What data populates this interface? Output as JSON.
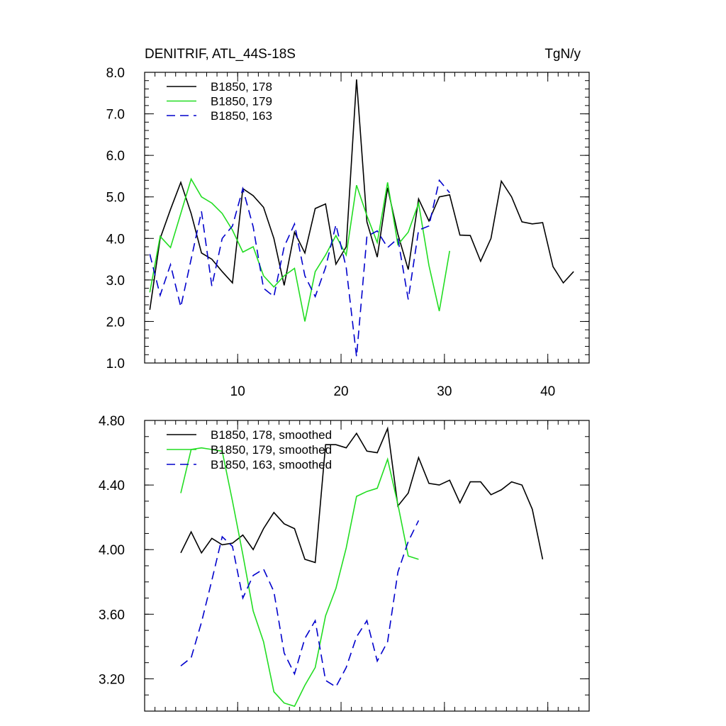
{
  "chart_data": [
    {
      "type": "line",
      "title": "DENITRIF, ATL_44S-18S",
      "units": "TgN/y",
      "xlim": [
        1,
        44
      ],
      "ylim": [
        1.0,
        8.0
      ],
      "x_ticks": [
        10,
        20,
        30,
        40
      ],
      "x_tick_labels": [
        "10",
        "20",
        "30",
        "40"
      ],
      "y_ticks": [
        1.0,
        2.0,
        3.0,
        4.0,
        5.0,
        6.0,
        7.0,
        8.0
      ],
      "y_tick_labels": [
        "1.0",
        "2.0",
        "3.0",
        "4.0",
        "5.0",
        "6.0",
        "7.0",
        "8.0"
      ],
      "legend_position": "top-left",
      "series": [
        {
          "name": "B1850, 178",
          "color": "#000000",
          "dash": "solid",
          "x_start": 1.5,
          "values": [
            2.28,
            4.0,
            4.7,
            5.35,
            4.6,
            3.65,
            3.5,
            3.2,
            2.93,
            5.2,
            5.03,
            4.75,
            4.0,
            2.87,
            4.15,
            3.65,
            4.72,
            4.83,
            3.38,
            3.8,
            7.83,
            4.4,
            3.55,
            5.22,
            4.1,
            3.25,
            4.95,
            4.42,
            5.0,
            5.05,
            4.08,
            4.07,
            3.45,
            4.0,
            5.38,
            5.0,
            4.4,
            4.35,
            4.38,
            3.32,
            2.93,
            3.2
          ]
        },
        {
          "name": "B1850, 179",
          "color": "#22dd22",
          "dash": "solid",
          "x_start": 1.5,
          "values": [
            2.7,
            4.05,
            3.78,
            4.6,
            5.43,
            5.0,
            4.85,
            4.6,
            4.2,
            3.67,
            3.8,
            3.1,
            2.83,
            3.1,
            3.28,
            2.0,
            3.2,
            3.6,
            4.07,
            3.6,
            5.28,
            4.55,
            3.9,
            5.35,
            3.85,
            4.15,
            4.85,
            3.35,
            2.25,
            3.7
          ]
        },
        {
          "name": "B1850, 163",
          "color": "#0000cc",
          "dash": "dashed",
          "x_start": 1.5,
          "values": [
            3.62,
            2.63,
            3.37,
            2.35,
            3.5,
            4.65,
            2.85,
            4.0,
            4.3,
            5.2,
            4.28,
            2.8,
            2.6,
            3.8,
            4.35,
            3.1,
            2.6,
            3.3,
            4.33,
            3.3,
            1.15,
            4.05,
            4.18,
            3.78,
            4.0,
            2.53,
            4.2,
            4.3,
            5.4,
            5.1
          ]
        }
      ]
    },
    {
      "type": "line",
      "title": "",
      "xlim": [
        1,
        44
      ],
      "ylim": [
        3.0,
        4.8
      ],
      "x_ticks": [
        10,
        20,
        30,
        40
      ],
      "x_tick_labels": [],
      "y_ticks": [
        3.2,
        3.6,
        4.0,
        4.4,
        4.8
      ],
      "y_tick_labels": [
        "3.20",
        "3.60",
        "4.00",
        "4.40",
        "4.80"
      ],
      "legend_position": "top-left",
      "series": [
        {
          "name": "B1850, 178, smoothed",
          "color": "#000000",
          "dash": "solid",
          "x_start": 4.5,
          "values": [
            3.98,
            4.11,
            3.98,
            4.07,
            4.03,
            4.04,
            4.09,
            4.0,
            4.13,
            4.23,
            4.16,
            4.13,
            3.94,
            3.92,
            4.65,
            4.65,
            4.63,
            4.72,
            4.61,
            4.6,
            4.75,
            4.27,
            4.35,
            4.57,
            4.41,
            4.4,
            4.43,
            4.29,
            4.42,
            4.42,
            4.34,
            4.37,
            4.42,
            4.4,
            4.25,
            3.94
          ]
        },
        {
          "name": "B1850, 179, smoothed",
          "color": "#22dd22",
          "dash": "solid",
          "x_start": 4.5,
          "values": [
            4.35,
            4.62,
            4.63,
            4.62,
            4.61,
            4.3,
            3.97,
            3.62,
            3.43,
            3.12,
            3.05,
            3.03,
            3.16,
            3.27,
            3.59,
            3.76,
            4.01,
            4.33,
            4.36,
            4.38,
            4.56,
            4.28,
            3.96,
            3.94
          ]
        },
        {
          "name": "B1850, 163, smoothed",
          "color": "#0000cc",
          "dash": "dashed",
          "x_start": 4.5,
          "values": [
            3.28,
            3.33,
            3.55,
            3.81,
            4.08,
            4.02,
            3.7,
            3.84,
            3.88,
            3.74,
            3.36,
            3.23,
            3.45,
            3.56,
            3.19,
            3.15,
            3.27,
            3.46,
            3.56,
            3.31,
            3.43,
            3.86,
            4.05,
            4.18
          ]
        }
      ]
    }
  ]
}
